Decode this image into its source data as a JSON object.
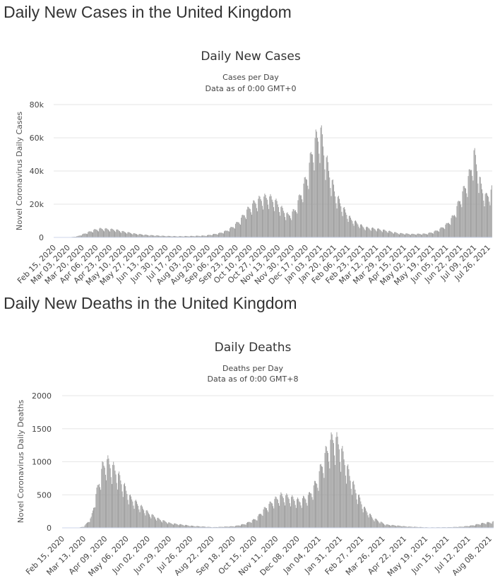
{
  "sections": [
    {
      "heading": "Daily New Cases in the United Kingdom"
    },
    {
      "heading": "Daily New Deaths in the United Kingdom"
    }
  ],
  "chart_data": [
    {
      "type": "bar",
      "title": "Daily New Cases",
      "subtitle": "Cases per Day",
      "subtitle2": "Data as of 0:00 GMT+0",
      "xlabel": "",
      "ylabel": "Novel Coronavirus Daily Cases",
      "ylim": [
        0,
        80000
      ],
      "yticks": [
        0,
        20000,
        40000,
        60000,
        80000
      ],
      "ytick_labels": [
        "0",
        "20k",
        "40k",
        "60k",
        "80k"
      ],
      "x_start": "2020-02-15",
      "x_end": "2021-08-08",
      "xtick_labels": [
        "Feb 15, 2020",
        "Mar 03, 2020",
        "Mar 20, 2020",
        "Apr 06, 2020",
        "Apr 23, 2020",
        "May 10, 2020",
        "May 27, 2020",
        "Jun 13, 2020",
        "Jun 30, 2020",
        "Jul 17, 2020",
        "Aug 03, 2020",
        "Aug 20, 2020",
        "Sep 06, 2020",
        "Sep 23, 2020",
        "Oct 10, 2020",
        "Oct 27, 2020",
        "Nov 13, 2020",
        "Nov 30, 2020",
        "Dec 17, 2020",
        "Jan 03, 2021",
        "Jan 20, 2021",
        "Feb 06, 2021",
        "Feb 23, 2021",
        "Mar 12, 2021",
        "Mar 29, 2021",
        "Apr 15, 2021",
        "May 02, 2021",
        "May 19, 2021",
        "Jun 05, 2021",
        "Jun 22, 2021",
        "Jul 09, 2021",
        "Jul 26, 2021"
      ],
      "series_points": [
        [
          "2020-02-15",
          0
        ],
        [
          "2020-03-05",
          50
        ],
        [
          "2020-03-15",
          700
        ],
        [
          "2020-03-25",
          2500
        ],
        [
          "2020-04-05",
          4500
        ],
        [
          "2020-04-12",
          5200
        ],
        [
          "2020-04-20",
          5000
        ],
        [
          "2020-05-01",
          4600
        ],
        [
          "2020-05-10",
          3500
        ],
        [
          "2020-05-25",
          2200
        ],
        [
          "2020-06-10",
          1400
        ],
        [
          "2020-06-30",
          900
        ],
        [
          "2020-07-17",
          700
        ],
        [
          "2020-08-03",
          850
        ],
        [
          "2020-08-20",
          1100
        ],
        [
          "2020-09-06",
          2500
        ],
        [
          "2020-09-15",
          4000
        ],
        [
          "2020-09-23",
          6500
        ],
        [
          "2020-10-01",
          10000
        ],
        [
          "2020-10-10",
          16000
        ],
        [
          "2020-10-20",
          21000
        ],
        [
          "2020-10-27",
          23000
        ],
        [
          "2020-11-05",
          24000
        ],
        [
          "2020-11-13",
          22000
        ],
        [
          "2020-11-22",
          17000
        ],
        [
          "2020-11-30",
          13000
        ],
        [
          "2020-12-08",
          16000
        ],
        [
          "2020-12-17",
          28000
        ],
        [
          "2020-12-24",
          38000
        ],
        [
          "2020-12-31",
          55000
        ],
        [
          "2021-01-05",
          60000
        ],
        [
          "2021-01-09",
          63000
        ],
        [
          "2021-01-13",
          52000
        ],
        [
          "2021-01-20",
          38000
        ],
        [
          "2021-01-27",
          26000
        ],
        [
          "2021-02-06",
          17000
        ],
        [
          "2021-02-15",
          11000
        ],
        [
          "2021-02-23",
          8500
        ],
        [
          "2021-03-04",
          6000
        ],
        [
          "2021-03-12",
          5500
        ],
        [
          "2021-03-20",
          5000
        ],
        [
          "2021-03-29",
          4200
        ],
        [
          "2021-04-15",
          2500
        ],
        [
          "2021-05-02",
          2000
        ],
        [
          "2021-05-19",
          2200
        ],
        [
          "2021-05-28",
          3200
        ],
        [
          "2021-06-05",
          5000
        ],
        [
          "2021-06-14",
          8000
        ],
        [
          "2021-06-22",
          13000
        ],
        [
          "2021-06-30",
          23000
        ],
        [
          "2021-07-07",
          31000
        ],
        [
          "2021-07-12",
          38000
        ],
        [
          "2021-07-17",
          50000
        ],
        [
          "2021-07-21",
          42000
        ],
        [
          "2021-07-26",
          30000
        ],
        [
          "2021-08-01",
          24000
        ],
        [
          "2021-08-08",
          28000
        ]
      ]
    },
    {
      "type": "bar",
      "title": "Daily Deaths",
      "subtitle": "Deaths per Day",
      "subtitle2": "Data as of 0:00 GMT+8",
      "xlabel": "",
      "ylabel": "Novel Coronavirus Daily Deaths",
      "ylim": [
        0,
        2000
      ],
      "yticks": [
        0,
        500,
        1000,
        1500,
        2000
      ],
      "ytick_labels": [
        "0",
        "500",
        "1000",
        "1500",
        "2000"
      ],
      "x_start": "2020-02-15",
      "x_end": "2021-08-08",
      "xtick_labels": [
        "Feb 15, 2020",
        "Mar 13, 2020",
        "Apr 09, 2020",
        "May 06, 2020",
        "Jun 02, 2020",
        "Jun 29, 2020",
        "Jul 26, 2020",
        "Aug 22, 2020",
        "Sep 18, 2020",
        "Oct 15, 2020",
        "Nov 11, 2020",
        "Dec 08, 2020",
        "Jan 04, 2021",
        "Jan 31, 2021",
        "Feb 27, 2021",
        "Mar 26, 2021",
        "Apr 22, 2021",
        "May 19, 2021",
        "Jun 15, 2021",
        "Jul 12, 2021",
        "Aug 08, 2021"
      ],
      "series_points": [
        [
          "2020-02-15",
          0
        ],
        [
          "2020-03-05",
          0
        ],
        [
          "2020-03-13",
          20
        ],
        [
          "2020-03-22",
          150
        ],
        [
          "2020-03-30",
          600
        ],
        [
          "2020-04-05",
          900
        ],
        [
          "2020-04-10",
          1000
        ],
        [
          "2020-04-15",
          950
        ],
        [
          "2020-04-22",
          850
        ],
        [
          "2020-05-01",
          650
        ],
        [
          "2020-05-10",
          450
        ],
        [
          "2020-05-20",
          350
        ],
        [
          "2020-06-02",
          220
        ],
        [
          "2020-06-15",
          130
        ],
        [
          "2020-06-29",
          70
        ],
        [
          "2020-07-26",
          30
        ],
        [
          "2020-08-22",
          10
        ],
        [
          "2020-09-18",
          25
        ],
        [
          "2020-10-01",
          60
        ],
        [
          "2020-10-15",
          140
        ],
        [
          "2020-10-25",
          280
        ],
        [
          "2020-11-05",
          400
        ],
        [
          "2020-11-15",
          480
        ],
        [
          "2020-11-25",
          460
        ],
        [
          "2020-12-08",
          400
        ],
        [
          "2020-12-20",
          480
        ],
        [
          "2020-12-30",
          700
        ],
        [
          "2021-01-08",
          1050
        ],
        [
          "2021-01-15",
          1250
        ],
        [
          "2021-01-20",
          1350
        ],
        [
          "2021-01-27",
          1250
        ],
        [
          "2021-02-03",
          1000
        ],
        [
          "2021-02-10",
          750
        ],
        [
          "2021-02-17",
          550
        ],
        [
          "2021-02-27",
          300
        ],
        [
          "2021-03-10",
          150
        ],
        [
          "2021-03-26",
          50
        ],
        [
          "2021-04-22",
          20
        ],
        [
          "2021-05-19",
          7
        ],
        [
          "2021-06-15",
          10
        ],
        [
          "2021-06-30",
          18
        ],
        [
          "2021-07-12",
          35
        ],
        [
          "2021-07-26",
          70
        ],
        [
          "2021-08-08",
          90
        ]
      ]
    }
  ]
}
